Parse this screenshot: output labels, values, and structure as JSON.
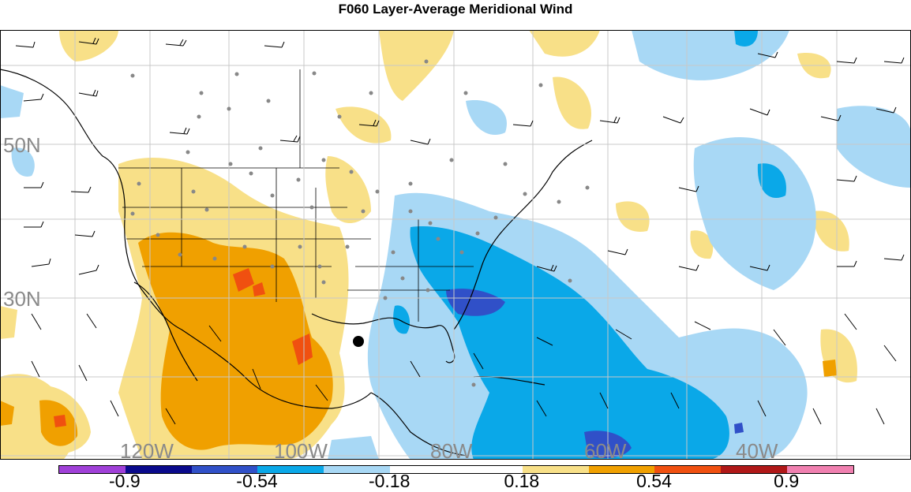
{
  "title": "F060 Layer-Average Meridional Wind",
  "lat_labels": [
    "50N",
    "30N"
  ],
  "lon_labels": [
    "120W",
    "100W",
    "80W",
    "60W",
    "40W"
  ],
  "colorbar": {
    "ticks": [
      "-0.9",
      "-0.54",
      "-0.18",
      "0.18",
      "0.54",
      "0.9"
    ],
    "colors": [
      "#a040d8",
      "#0a0a8c",
      "#3050c8",
      "#0aa8e8",
      "#a8d8f5",
      "#ffffff",
      "#ffffff",
      "#f8e088",
      "#f0a000",
      "#f05010",
      "#b01818",
      "#f080b0"
    ]
  },
  "palette": {
    "deep_orange": "#f0a000",
    "light_yellow": "#f8e088",
    "red_orange": "#f05010",
    "light_blue": "#a8d8f5",
    "mid_blue": "#0aa8e8",
    "dark_blue": "#3050c8",
    "grid": "#c8c8c8",
    "coast": "#000000",
    "station": "#888888"
  }
}
